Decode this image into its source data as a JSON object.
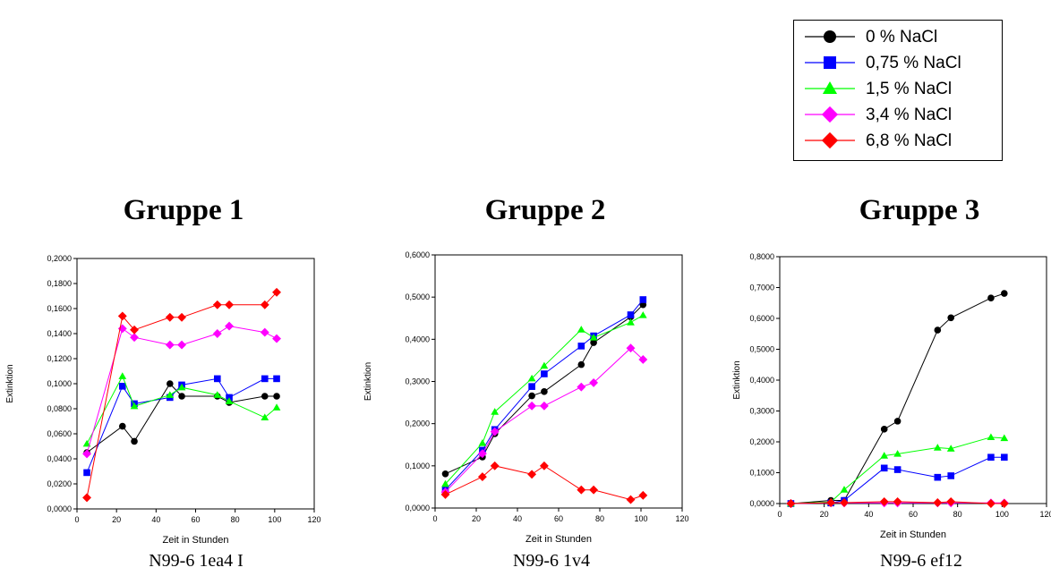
{
  "legend": {
    "items": [
      {
        "label": "0 % NaCl",
        "color": "#000000",
        "marker": "circle"
      },
      {
        "label": "0,75 % NaCl",
        "color": "#0000ff",
        "marker": "square"
      },
      {
        "label": "1,5 % NaCl",
        "color": "#00ff00",
        "marker": "triangle"
      },
      {
        "label": "3,4 % NaCl",
        "color": "#ff00ff",
        "marker": "diamond"
      },
      {
        "label": "6,8 % NaCl",
        "color": "#ff0000",
        "marker": "diamond"
      }
    ]
  },
  "groups": [
    {
      "title": "Gruppe 1",
      "sample": "N99-6 1ea4 I"
    },
    {
      "title": "Gruppe 2",
      "sample": "N99-6 1v4"
    },
    {
      "title": "Gruppe 3",
      "sample": "N99-6 ef12"
    }
  ],
  "chart_data": [
    {
      "type": "line",
      "xlabel": "Zeit in Stunden",
      "ylabel": "Extinktion",
      "xlim": [
        0,
        120
      ],
      "xticks": [
        0,
        20,
        40,
        60,
        80,
        100,
        120
      ],
      "ylim": [
        0,
        0.2
      ],
      "yticks": [
        "0,0000",
        "0,0200",
        "0,0400",
        "0,0600",
        "0,0800",
        "0,1000",
        "0,1200",
        "0,1400",
        "0,1600",
        "0,1800",
        "0,2000"
      ],
      "x": [
        5,
        23,
        29,
        47,
        53,
        71,
        77,
        95,
        101
      ],
      "series": [
        {
          "name": "0 % NaCl",
          "values": [
            0.045,
            0.066,
            0.054,
            0.1,
            0.09,
            0.09,
            0.085,
            0.09,
            0.09
          ]
        },
        {
          "name": "0,75 % NaCl",
          "values": [
            0.029,
            0.098,
            0.084,
            0.089,
            0.099,
            0.104,
            0.089,
            0.104,
            0.104
          ]
        },
        {
          "name": "1,5 % NaCl",
          "values": [
            0.052,
            0.106,
            0.082,
            0.091,
            0.097,
            0.091,
            0.086,
            0.073,
            0.081
          ]
        },
        {
          "name": "3,4 % NaCl",
          "values": [
            0.044,
            0.144,
            0.137,
            0.131,
            0.131,
            0.14,
            0.146,
            0.141,
            0.136
          ]
        },
        {
          "name": "6,8 % NaCl",
          "values": [
            0.009,
            0.154,
            0.143,
            0.153,
            0.153,
            0.163,
            0.163,
            0.163,
            0.173
          ]
        }
      ]
    },
    {
      "type": "line",
      "xlabel": "Zeit in Stunden",
      "ylabel": "Extinktion",
      "xlim": [
        0,
        120
      ],
      "xticks": [
        0,
        20,
        40,
        60,
        80,
        100,
        120
      ],
      "ylim": [
        0,
        0.6
      ],
      "yticks": [
        "0,0000",
        "0,1000",
        "0,2000",
        "0,3000",
        "0,4000",
        "0,5000",
        "0,6000"
      ],
      "x": [
        5,
        23,
        29,
        47,
        53,
        71,
        77,
        95,
        101
      ],
      "series": [
        {
          "name": "0 % NaCl",
          "values": [
            0.081,
            0.121,
            0.176,
            0.266,
            0.276,
            0.34,
            0.392,
            0.453,
            0.482
          ]
        },
        {
          "name": "0,75 % NaCl",
          "values": [
            0.043,
            0.137,
            0.186,
            0.288,
            0.318,
            0.384,
            0.408,
            0.458,
            0.494
          ]
        },
        {
          "name": "1,5 % NaCl",
          "values": [
            0.057,
            0.154,
            0.228,
            0.307,
            0.337,
            0.423,
            0.404,
            0.44,
            0.457
          ]
        },
        {
          "name": "3,4 % NaCl",
          "values": [
            0.038,
            0.129,
            0.181,
            0.242,
            0.242,
            0.287,
            0.297,
            0.379,
            0.352
          ]
        },
        {
          "name": "6,8 % NaCl",
          "values": [
            0.032,
            0.074,
            0.1,
            0.08,
            0.1,
            0.043,
            0.043,
            0.02,
            0.03
          ]
        }
      ]
    },
    {
      "type": "line",
      "xlabel": "Zeit in Stunden",
      "ylabel": "Extinktion",
      "xlim": [
        0,
        120
      ],
      "xticks": [
        0,
        20,
        40,
        60,
        80,
        100,
        120
      ],
      "ylim": [
        0,
        0.8
      ],
      "yticks": [
        "0,0000",
        "0,1000",
        "0,2000",
        "0,3000",
        "0,4000",
        "0,5000",
        "0,6000",
        "0,7000",
        "0,8000"
      ],
      "x": [
        5,
        23,
        29,
        47,
        53,
        71,
        77,
        95,
        101
      ],
      "series": [
        {
          "name": "0 % NaCl",
          "values": [
            0.0,
            0.01,
            0.01,
            0.241,
            0.267,
            0.562,
            0.602,
            0.666,
            0.681
          ]
        },
        {
          "name": "0,75 % NaCl",
          "values": [
            0.0,
            0.002,
            0.01,
            0.115,
            0.11,
            0.085,
            0.09,
            0.15,
            0.15
          ]
        },
        {
          "name": "1,5 % NaCl",
          "values": [
            0.0,
            0.005,
            0.045,
            0.155,
            0.161,
            0.181,
            0.178,
            0.215,
            0.212
          ]
        },
        {
          "name": "3,4 % NaCl",
          "values": [
            0.0,
            0.002,
            0.002,
            0.002,
            0.002,
            0.002,
            0.002,
            0.002,
            0.002
          ]
        },
        {
          "name": "6,8 % NaCl",
          "values": [
            0.0,
            0.003,
            0.003,
            0.006,
            0.006,
            0.003,
            0.006,
            0.0,
            0.0
          ]
        }
      ]
    }
  ]
}
